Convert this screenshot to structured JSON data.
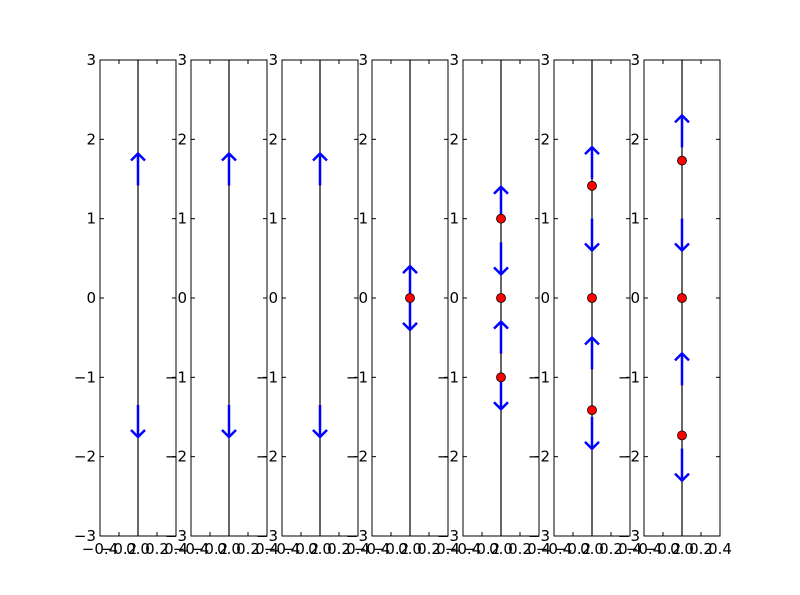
{
  "chart_data": {
    "type": "scatter",
    "title": "",
    "xlabel": "",
    "ylabel": "",
    "grid": false,
    "xlim": [
      -0.4,
      0.4
    ],
    "ylim": [
      -3,
      3
    ],
    "yticks": [
      -3,
      -2,
      -1,
      0,
      1,
      2,
      3
    ],
    "ytick_labels": [
      "−3",
      "−2",
      "−1",
      "0",
      "1",
      "2",
      "3"
    ],
    "xtick_labels": [
      "−0.4",
      "−0.2",
      "0.0",
      "0.2",
      "0.4"
    ],
    "colors": {
      "axis": "#000000",
      "arrow": "#0000ff",
      "equilibrium": "#ff0000"
    },
    "panels": [
      {
        "equilibria": [],
        "arrows": [
          {
            "y": 1.62,
            "direction": "up"
          },
          {
            "y": -1.55,
            "direction": "down"
          }
        ]
      },
      {
        "equilibria": [],
        "arrows": [
          {
            "y": 1.62,
            "direction": "up"
          },
          {
            "y": -1.55,
            "direction": "down"
          }
        ]
      },
      {
        "equilibria": [],
        "arrows": [
          {
            "y": 1.62,
            "direction": "up"
          },
          {
            "y": -1.55,
            "direction": "down"
          }
        ]
      },
      {
        "equilibria": [
          0
        ],
        "arrows": [
          {
            "y": 0.2,
            "direction": "up"
          },
          {
            "y": -0.2,
            "direction": "down"
          }
        ]
      },
      {
        "equilibria": [
          -1,
          0,
          1
        ],
        "arrows": [
          {
            "y": 1.2,
            "direction": "up"
          },
          {
            "y": 0.5,
            "direction": "down"
          },
          {
            "y": -0.5,
            "direction": "up"
          },
          {
            "y": -1.2,
            "direction": "down"
          }
        ]
      },
      {
        "equilibria": [
          -1.414,
          0,
          1.414
        ],
        "arrows": [
          {
            "y": 1.7,
            "direction": "up"
          },
          {
            "y": 0.8,
            "direction": "down"
          },
          {
            "y": -0.7,
            "direction": "up"
          },
          {
            "y": -1.7,
            "direction": "down"
          }
        ]
      },
      {
        "equilibria": [
          -1.732,
          0,
          1.732
        ],
        "arrows": [
          {
            "y": 2.1,
            "direction": "up"
          },
          {
            "y": 0.8,
            "direction": "down"
          },
          {
            "y": -0.9,
            "direction": "up"
          },
          {
            "y": -2.1,
            "direction": "down"
          }
        ]
      }
    ]
  }
}
